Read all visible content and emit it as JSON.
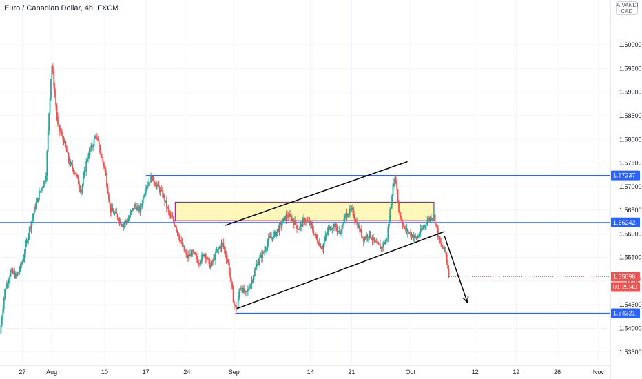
{
  "header": {
    "title": "Euro / Canadian Dollar, 4h, FXCM",
    "currency_top": "AIVANDI",
    "currency": "CAD"
  },
  "colors": {
    "up": "#26a69a",
    "down": "#ef5350",
    "level_line": "#2962ff",
    "zone_fill": "#fff59d",
    "zone_border": "#9c27b0",
    "trend_line": "#000000",
    "current_price": "#ef5350"
  },
  "chart_data": {
    "type": "candlestick",
    "price_ticks": [
      "1.60000",
      "1.59500",
      "1.59000",
      "1.58500",
      "1.58000",
      "1.57500",
      "1.57000",
      "1.56500",
      "1.56000",
      "1.55500",
      "1.55000",
      "1.54500",
      "1.54000",
      "1.53500"
    ],
    "price_tick_values": [
      1.6,
      1.595,
      1.59,
      1.585,
      1.58,
      1.575,
      1.57,
      1.565,
      1.56,
      1.555,
      1.55,
      1.545,
      1.54,
      1.535
    ],
    "ylim": [
      1.5322,
      1.6095
    ],
    "x_ticks": [
      "27",
      "Aug",
      "10",
      "17",
      "24",
      "Sep",
      "14",
      "21",
      "Oct",
      "12",
      "19",
      "26",
      "Nov"
    ],
    "x_tick_days": [
      -4,
      1,
      10,
      17,
      24,
      32,
      45,
      52,
      62,
      73,
      80,
      87,
      94
    ],
    "xlim": [
      -7.8,
      96
    ],
    "price_path": [
      [
        -7.8,
        1.539
      ],
      [
        -7,
        1.548
      ],
      [
        -6,
        1.552
      ],
      [
        -5,
        1.551
      ],
      [
        -4,
        1.554
      ],
      [
        -3,
        1.56
      ],
      [
        -2,
        1.565
      ],
      [
        -1,
        1.569
      ],
      [
        0,
        1.572
      ],
      [
        0.5,
        1.585
      ],
      [
        1,
        1.596
      ],
      [
        1.5,
        1.59
      ],
      [
        2,
        1.583
      ],
      [
        3,
        1.58
      ],
      [
        4,
        1.575
      ],
      [
        5,
        1.573
      ],
      [
        6,
        1.569
      ],
      [
        7,
        1.576
      ],
      [
        8,
        1.579
      ],
      [
        8.5,
        1.581
      ],
      [
        9.5,
        1.576
      ],
      [
        10,
        1.574
      ],
      [
        11,
        1.565
      ],
      [
        12,
        1.564
      ],
      [
        13,
        1.562
      ],
      [
        14,
        1.563
      ],
      [
        15,
        1.566
      ],
      [
        16,
        1.565
      ],
      [
        17,
        1.57
      ],
      [
        18,
        1.572
      ],
      [
        19,
        1.57
      ],
      [
        20,
        1.568
      ],
      [
        21,
        1.564
      ],
      [
        22,
        1.562
      ],
      [
        23,
        1.558
      ],
      [
        24,
        1.555
      ],
      [
        25,
        1.556
      ],
      [
        26,
        1.554
      ],
      [
        27,
        1.556
      ],
      [
        28,
        1.553
      ],
      [
        29,
        1.556
      ],
      [
        30,
        1.558
      ],
      [
        31,
        1.554
      ],
      [
        32,
        1.545
      ],
      [
        32.5,
        1.544
      ],
      [
        33,
        1.549
      ],
      [
        34,
        1.547
      ],
      [
        35,
        1.55
      ],
      [
        36,
        1.554
      ],
      [
        37,
        1.556
      ],
      [
        38,
        1.559
      ],
      [
        39,
        1.56
      ],
      [
        40,
        1.562
      ],
      [
        41,
        1.564
      ],
      [
        42,
        1.563
      ],
      [
        43,
        1.561
      ],
      [
        44,
        1.563
      ],
      [
        45,
        1.562
      ],
      [
        46,
        1.559
      ],
      [
        47,
        1.557
      ],
      [
        48,
        1.561
      ],
      [
        49,
        1.562
      ],
      [
        50,
        1.56
      ],
      [
        51,
        1.564
      ],
      [
        52,
        1.565
      ],
      [
        53,
        1.562
      ],
      [
        54,
        1.559
      ],
      [
        55,
        1.56
      ],
      [
        56,
        1.558
      ],
      [
        57,
        1.557
      ],
      [
        58,
        1.559
      ],
      [
        59,
        1.57
      ],
      [
        59.5,
        1.572
      ],
      [
        60,
        1.565
      ],
      [
        61,
        1.561
      ],
      [
        62,
        1.56
      ],
      [
        63,
        1.559
      ],
      [
        64,
        1.561
      ],
      [
        65,
        1.563
      ],
      [
        66,
        1.564
      ],
      [
        67,
        1.558
      ],
      [
        68,
        1.556
      ],
      [
        68.6,
        1.551
      ]
    ],
    "levels": [
      {
        "price": 1.57237,
        "label": "1.57237",
        "x_start": 17
      },
      {
        "price": 1.56242,
        "label": "1.56242",
        "x_start": -7.8
      },
      {
        "price": 1.54321,
        "label": "1.54321",
        "x_start": 32.2
      }
    ],
    "zone": {
      "x_start": 22,
      "x_end": 66,
      "price_top": 1.5667,
      "price_bottom": 1.5628
    },
    "channel": {
      "upper": [
        [
          30.5,
          1.5618
        ],
        [
          61.5,
          1.5753
        ]
      ],
      "lower": [
        [
          32.5,
          1.5442
        ],
        [
          67.8,
          1.5605
        ]
      ]
    },
    "arrow": {
      "from": [
        67.8,
        1.5595
      ],
      "to": [
        71.7,
        1.5455
      ]
    },
    "current_price": {
      "price": 1.55096,
      "label": "1.55096",
      "countdown": "01:29:43"
    }
  }
}
